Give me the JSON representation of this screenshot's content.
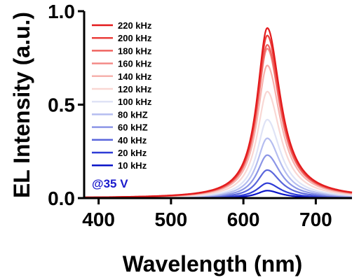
{
  "chart_data": {
    "type": "line",
    "xlabel": "Wavelength (nm)",
    "ylabel": "EL Intensity (a.u.)",
    "xlim": [
      380,
      750
    ],
    "ylim": [
      0,
      1.0
    ],
    "xticks": [
      400,
      500,
      600,
      700
    ],
    "yticks": [
      0.0,
      0.5,
      1.0
    ],
    "xtick_labels": [
      "400",
      "500",
      "600",
      "700"
    ],
    "ytick_labels": [
      "0.0",
      "0.5",
      "1.0"
    ],
    "legend_placement": "top-left",
    "annotation": "@35 V",
    "annotation_color": "#1a1acc",
    "peak_wavelength": 633,
    "series": [
      {
        "name": "220 kHz",
        "color": "#e31a1c",
        "peak": 0.91
      },
      {
        "name": "200 kHz",
        "color": "#ea3f3b",
        "peak": 0.87
      },
      {
        "name": "180 kHz",
        "color": "#ef6461",
        "peak": 0.82
      },
      {
        "name": "160 kHz",
        "color": "#f38b88",
        "peak": 0.8
      },
      {
        "name": "140 kHz",
        "color": "#f6b2ad",
        "peak": 0.71
      },
      {
        "name": "120 kHz",
        "color": "#f9d7d3",
        "peak": 0.57
      },
      {
        "name": "100 kHz",
        "color": "#dfe3f6",
        "peak": 0.42
      },
      {
        "name": "80 kHZ",
        "color": "#b5bdf0",
        "peak": 0.32
      },
      {
        "name": "60 kHZ",
        "color": "#8b95e6",
        "peak": 0.23
      },
      {
        "name": "40 kHz",
        "color": "#5a66dc",
        "peak": 0.15
      },
      {
        "name": "20 kHz",
        "color": "#2e3bd6",
        "peak": 0.08
      },
      {
        "name": "10 kHz",
        "color": "#0a14c8",
        "peak": 0.04
      }
    ]
  }
}
